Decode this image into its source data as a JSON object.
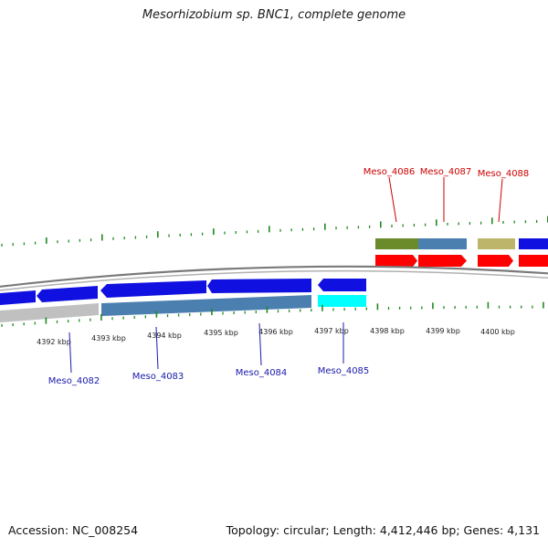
{
  "title": "Mesorhizobium sp. BNC1, complete genome",
  "footer": {
    "accession": "Accession: NC_008254",
    "summary": "Topology: circular; Length: 4,412,446 bp; Genes: 4,131"
  },
  "colors": {
    "ring": "#8a8a8a",
    "tick": "#1f8a1f",
    "forward_label": "#cc0000",
    "reverse_label": "#1a1aaa",
    "blue_gene": "#1010e0",
    "red_gene": "#ff0000",
    "steel": "#4a7fb0",
    "olive": "#6b8a2a",
    "khaki": "#bdb56a",
    "cyan": "#00ffff",
    "gray": "#c0c0c0"
  },
  "scale": {
    "labels": [
      "4392 kbp",
      "4393 kbp",
      "4394 kbp",
      "4395 kbp",
      "4396 kbp",
      "4397 kbp",
      "4398 kbp",
      "4399 kbp",
      "4400 kbp"
    ]
  },
  "gene_labels": {
    "forward": [
      "Meso_4086",
      "Meso_4087",
      "Meso_4088"
    ],
    "reverse": [
      "Meso_4082",
      "Meso_4083",
      "Meso_4084",
      "Meso_4085"
    ]
  }
}
